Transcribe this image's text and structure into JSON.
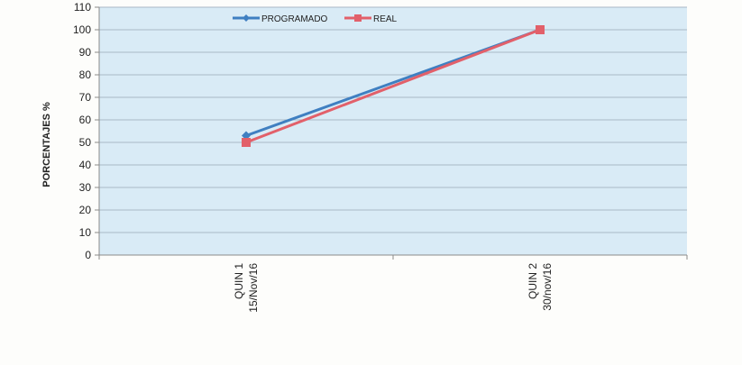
{
  "chart_data": {
    "type": "line",
    "title": "",
    "xlabel": "",
    "ylabel": "PORCENTAJES %",
    "ylim": [
      0,
      110
    ],
    "yticks": [
      0,
      10,
      20,
      30,
      40,
      50,
      60,
      70,
      80,
      90,
      100,
      110
    ],
    "grid": true,
    "legend_position": "top",
    "categories": [
      [
        "QUIN 1",
        "15/Nov/16"
      ],
      [
        "QUIN 2",
        "30/nov/16"
      ]
    ],
    "series": [
      {
        "name": "PROGRAMADO",
        "values": [
          53,
          100
        ],
        "color": "#3f7fc1",
        "marker": "diamond"
      },
      {
        "name": "REAL",
        "values": [
          50,
          100
        ],
        "color": "#e2606a",
        "marker": "square"
      }
    ],
    "colors": {
      "plot_background": "#d9ebf6",
      "grid": "#a9b8c6",
      "axis": "#8a8a8a"
    }
  }
}
